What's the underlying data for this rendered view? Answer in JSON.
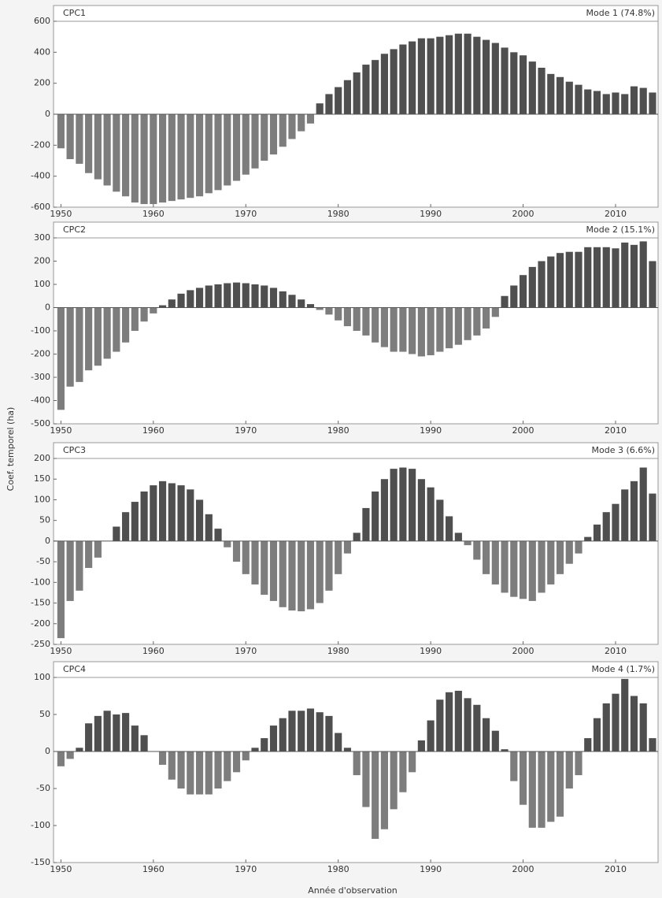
{
  "axis_labels": {
    "y": "Coef. temporel (ha)",
    "x": "Année d'observation"
  },
  "chart_data": [
    {
      "type": "bar",
      "title": "CPC1",
      "subtitle": "Mode 1 (74.8%)",
      "x_start": 1950,
      "values": [
        -220,
        -290,
        -320,
        -380,
        -420,
        -460,
        -500,
        -530,
        -570,
        -580,
        -580,
        -570,
        -560,
        -550,
        -540,
        -530,
        -510,
        -490,
        -460,
        -430,
        -390,
        -350,
        -300,
        -260,
        -210,
        -160,
        -110,
        -60,
        70,
        130,
        175,
        220,
        270,
        320,
        350,
        390,
        420,
        450,
        470,
        490,
        490,
        500,
        510,
        520,
        520,
        500,
        480,
        460,
        430,
        400,
        380,
        340,
        300,
        260,
        240,
        210,
        190,
        160,
        150,
        130,
        140,
        130,
        180,
        170,
        140
      ],
      "color_positive": "#4f4f4f",
      "color_negative": "#7d7d7d",
      "xlim": [
        1949.2,
        2014.6
      ],
      "xticks": [
        1950,
        1960,
        1970,
        1980,
        1990,
        2000,
        2010
      ],
      "ylim": [
        -600,
        600
      ],
      "yticks": [
        -600,
        -400,
        -200,
        0,
        200,
        400,
        600
      ]
    },
    {
      "type": "bar",
      "title": "CPC2",
      "subtitle": "Mode 2 (15.1%)",
      "x_start": 1950,
      "values": [
        -440,
        -340,
        -320,
        -270,
        -250,
        -220,
        -190,
        -150,
        -100,
        -60,
        -25,
        10,
        35,
        60,
        75,
        85,
        95,
        100,
        105,
        108,
        105,
        100,
        95,
        85,
        70,
        55,
        35,
        15,
        -10,
        -30,
        -55,
        -80,
        -100,
        -120,
        -150,
        -170,
        -190,
        -190,
        -200,
        -210,
        -205,
        -190,
        -175,
        -160,
        -140,
        -120,
        -90,
        -40,
        50,
        95,
        140,
        175,
        200,
        220,
        235,
        240,
        240,
        260,
        260,
        260,
        255,
        280,
        270,
        285,
        200
      ],
      "color_positive": "#4f4f4f",
      "color_negative": "#7d7d7d",
      "xlim": [
        1949.2,
        2014.6
      ],
      "xticks": [
        1950,
        1960,
        1970,
        1980,
        1990,
        2000,
        2010
      ],
      "ylim": [
        -500,
        300
      ],
      "yticks": [
        -500,
        -400,
        -300,
        -200,
        -100,
        0,
        100,
        200,
        300
      ]
    },
    {
      "type": "bar",
      "title": "CPC3",
      "subtitle": "Mode 3 (6.6%)",
      "x_start": 1950,
      "values": [
        -235,
        -145,
        -120,
        -65,
        -40,
        0,
        35,
        70,
        95,
        120,
        135,
        145,
        140,
        135,
        125,
        100,
        65,
        30,
        -15,
        -50,
        -80,
        -105,
        -130,
        -145,
        -160,
        -168,
        -170,
        -165,
        -150,
        -120,
        -80,
        -30,
        20,
        80,
        120,
        150,
        175,
        178,
        175,
        150,
        130,
        100,
        60,
        20,
        -10,
        -45,
        -80,
        -105,
        -125,
        -135,
        -140,
        -145,
        -125,
        -105,
        -80,
        -55,
        -30,
        10,
        40,
        70,
        90,
        125,
        145,
        178,
        115
      ],
      "color_positive": "#4f4f4f",
      "color_negative": "#7d7d7d",
      "xlim": [
        1949.2,
        2014.6
      ],
      "xticks": [
        1950,
        1960,
        1970,
        1980,
        1990,
        2000,
        2010
      ],
      "ylim": [
        -250,
        200
      ],
      "yticks": [
        -250,
        -200,
        -150,
        -100,
        -50,
        0,
        50,
        100,
        150,
        200
      ]
    },
    {
      "type": "bar",
      "title": "CPC4",
      "subtitle": "Mode 4 (1.7%)",
      "x_start": 1950,
      "values": [
        -20,
        -10,
        5,
        38,
        48,
        55,
        50,
        52,
        35,
        22,
        0,
        -18,
        -38,
        -50,
        -58,
        -58,
        -58,
        -50,
        -40,
        -28,
        -12,
        5,
        18,
        35,
        45,
        55,
        55,
        58,
        53,
        48,
        25,
        5,
        -32,
        -75,
        -118,
        -105,
        -78,
        -55,
        -28,
        15,
        42,
        70,
        80,
        82,
        72,
        63,
        45,
        28,
        3,
        -40,
        -72,
        -103,
        -103,
        -95,
        -88,
        -50,
        -32,
        18,
        45,
        65,
        78,
        98,
        75,
        65,
        18
      ],
      "color_positive": "#4f4f4f",
      "color_negative": "#7d7d7d",
      "xlim": [
        1949.2,
        2014.6
      ],
      "xticks": [
        1950,
        1960,
        1970,
        1980,
        1990,
        2000,
        2010
      ],
      "ylim": [
        -150,
        100
      ],
      "yticks": [
        -150,
        -100,
        -50,
        0,
        50,
        100
      ]
    }
  ]
}
